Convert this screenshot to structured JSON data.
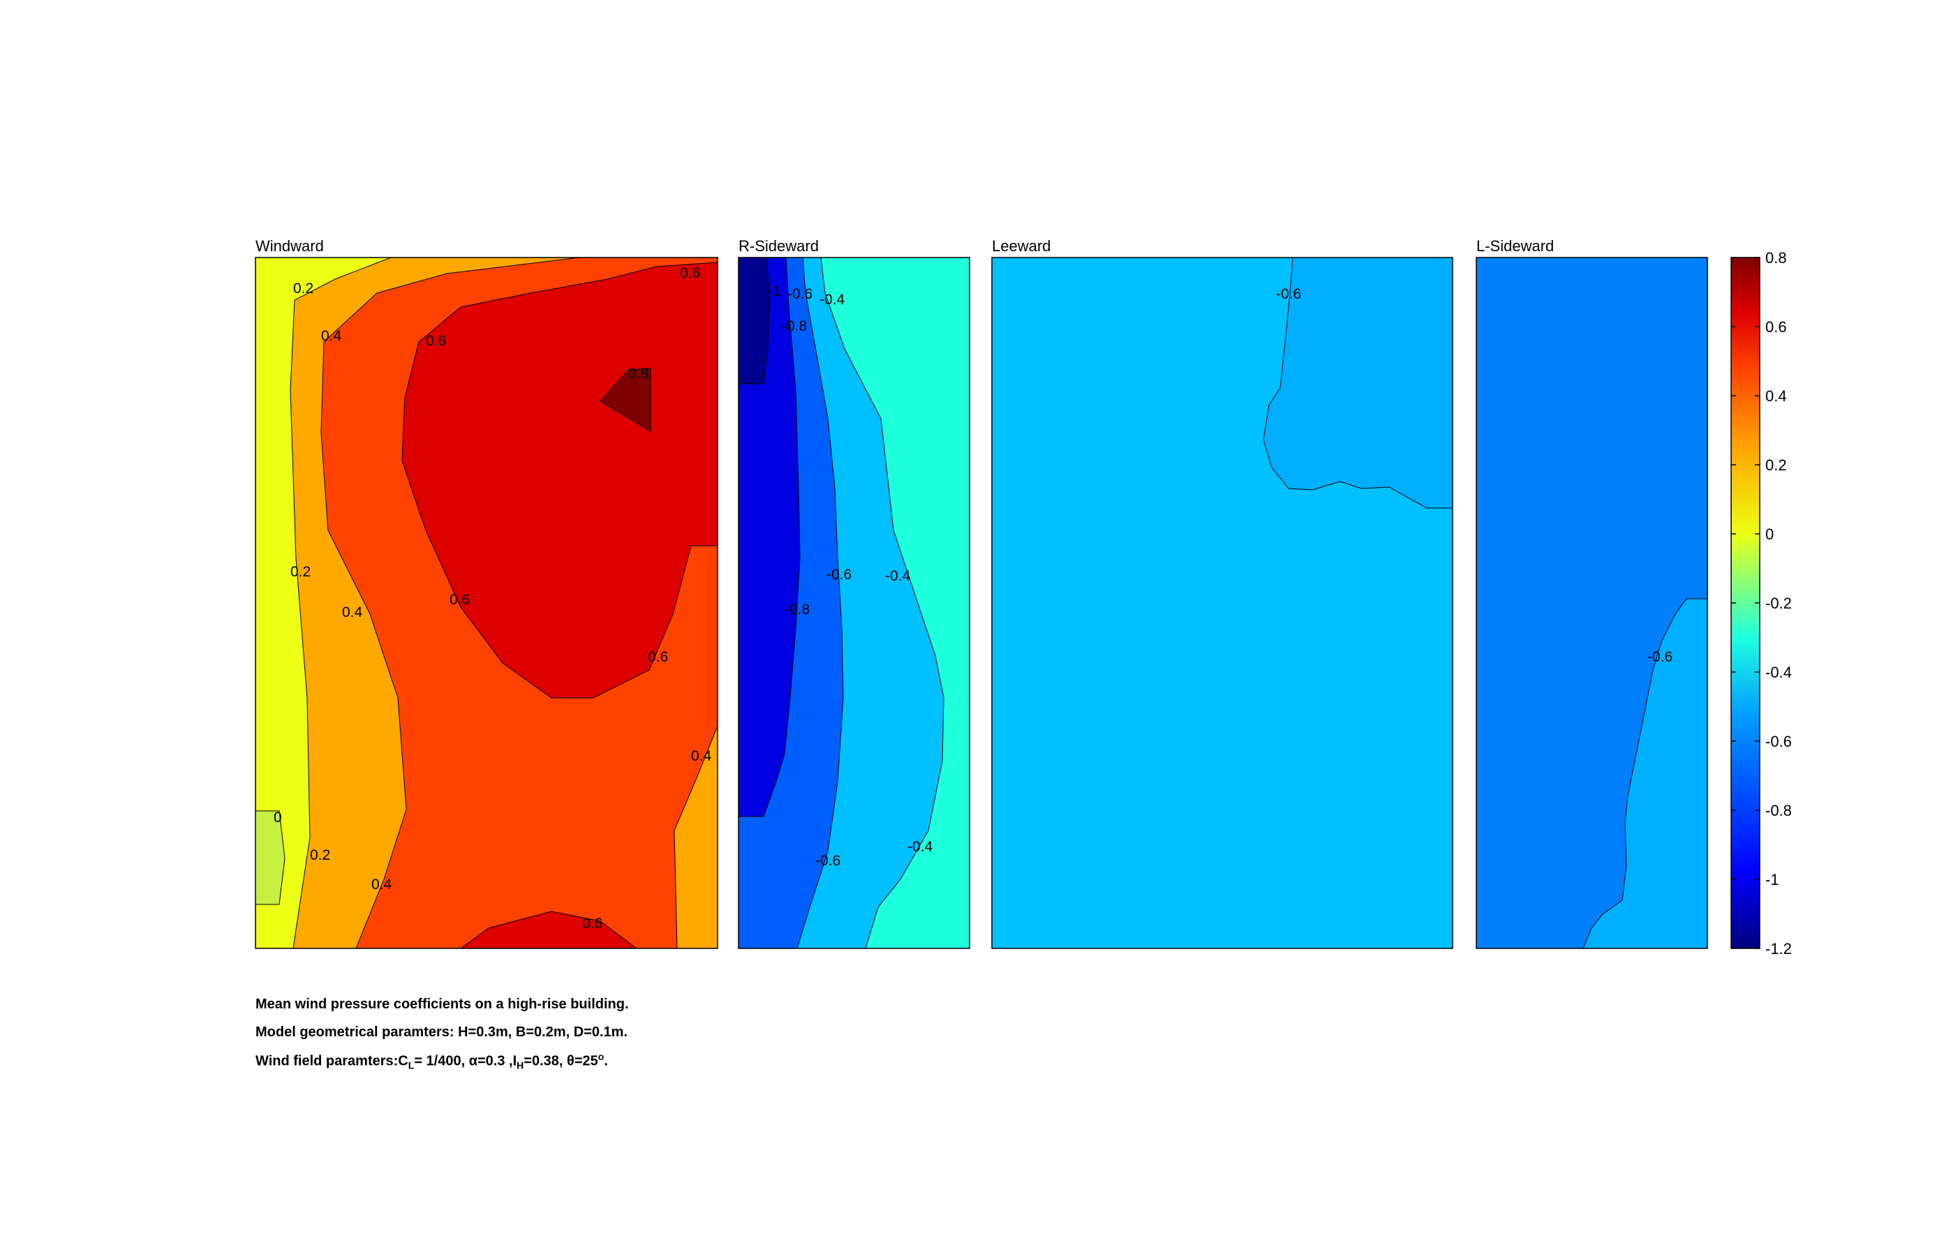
{
  "chart_data": {
    "type": "heatmap",
    "description_type": "filled-contour",
    "panels": [
      {
        "title": "Windward",
        "background_level": 0.2,
        "regions": [
          {
            "level": 0.0,
            "color": "#ecff14",
            "shape": "band-left"
          },
          {
            "level": -0.1,
            "color": "#c7f041",
            "shape": "pocket-lower-left"
          },
          {
            "level": 0.2,
            "color": "#ffa800",
            "shape": "band-2"
          },
          {
            "level": 0.4,
            "color": "#ff4200",
            "shape": "band-3"
          },
          {
            "level": 0.6,
            "color": "#de0000",
            "shape": "core"
          },
          {
            "level": 0.6,
            "color": "#de0000",
            "shape": "bottom-lobe"
          },
          {
            "level": 0.8,
            "color": "#7f0000",
            "shape": "peak"
          }
        ],
        "contour_labels": [
          "0.2",
          "0.4",
          "0.6",
          "0.8",
          "0.2",
          "0.4",
          "0.6",
          "0.6",
          "0.4",
          "0",
          "0.2",
          "0.4",
          "0.6",
          "0.6"
        ]
      },
      {
        "title": "R-Sideward",
        "background_level": -0.4,
        "regions": [
          {
            "level": -0.4,
            "color": "#1effdc",
            "shape": "base"
          },
          {
            "level": -0.6,
            "color": "#00c0ff",
            "shape": "band-1"
          },
          {
            "level": -0.8,
            "color": "#0060ff",
            "shape": "band-2"
          },
          {
            "level": -1.0,
            "color": "#0000e0",
            "shape": "band-3"
          },
          {
            "level": -1.2,
            "color": "#00008f",
            "shape": "corner"
          }
        ],
        "contour_labels": [
          "-1",
          "-0.6",
          "-0.4",
          "-0.8",
          "-0.6",
          "-0.4",
          "-0.8",
          "-0.6",
          "-0.4"
        ]
      },
      {
        "title": "Leeward",
        "background_level": -0.6,
        "regions": [
          {
            "level": -0.6,
            "color": "#00c0ff",
            "shape": "base"
          },
          {
            "level": -0.65,
            "color": "#00aeff",
            "shape": "upper-right"
          }
        ],
        "contour_labels": [
          "-0.6"
        ]
      },
      {
        "title": "L-Sideward",
        "background_level": -0.7,
        "regions": [
          {
            "level": -0.7,
            "color": "#0080ff",
            "shape": "base"
          },
          {
            "level": -0.6,
            "color": "#00b0ff",
            "shape": "lower-right"
          }
        ],
        "contour_labels": [
          "-0.6"
        ]
      }
    ],
    "colorbar": {
      "ticks": [
        "0.8",
        "0.6",
        "0.4",
        "0.2",
        "0",
        "-0.2",
        "-0.4",
        "-0.6",
        "-0.8",
        "-1",
        "-1.2"
      ],
      "range": [
        -1.2,
        0.8
      ],
      "colormap": "jet"
    }
  },
  "caption": {
    "line1": "Mean wind pressure coefficients on a high-rise building.",
    "line2": "Model geometrical paramters: H=0.3m, B=0.2m, D=0.1m.",
    "line3_prefix": "Wind field paramters:C",
    "line3_sub_L": "L",
    "line3_mid": "= 1/400, α=0.3 ,I",
    "line3_sub_H": "H",
    "line3_rest": "=0.38, θ=25",
    "line3_sup": "o",
    "line3_end": "."
  }
}
